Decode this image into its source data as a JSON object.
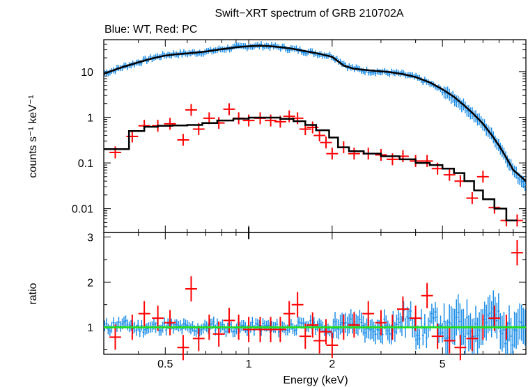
{
  "chart_data": {
    "type": "scatter",
    "title": "Swift−XRT spectrum of GRB 210702A",
    "subtitle": "Blue: WT, Red: PC",
    "xlabel": "Energy (keV)",
    "x_scale": "log",
    "xlim": [
      0.3,
      10
    ],
    "x_ticks": [
      "0.5",
      "1",
      "2",
      "5"
    ],
    "panels": [
      {
        "id": "spectrum",
        "ylabel": "counts s⁻¹ keV⁻¹",
        "y_scale": "log",
        "ylim": [
          0.003,
          50
        ],
        "y_ticks": [
          "10",
          "1",
          "0.1",
          "0.01"
        ],
        "series": [
          {
            "label": "WT",
            "color": "#1e8fe8",
            "x": [
              0.3,
              0.35,
              0.4,
              0.45,
              0.5,
              0.55,
              0.6,
              0.7,
              0.8,
              0.9,
              1.0,
              1.1,
              1.2,
              1.3,
              1.5,
              1.7,
              2.0,
              2.3,
              2.6,
              3.0,
              3.5,
              4.0,
              4.5,
              5.0,
              5.5,
              6.0,
              6.5,
              7.0,
              7.5,
              8.0,
              8.5,
              9.0,
              9.5,
              10.0
            ],
            "y": [
              9,
              12.5,
              16,
              20,
              23,
              24.5,
              25,
              27,
              31,
              34,
              36,
              37,
              36,
              34,
              30,
              26,
              22,
              12.5,
              10.5,
              9.8,
              9,
              7.5,
              5.5,
              3.8,
              2.6,
              1.7,
              1.1,
              0.7,
              0.42,
              0.24,
              0.13,
              0.07,
              0.045,
              0.035
            ]
          },
          {
            "label": "PC",
            "color": "#ff0000",
            "x": [
              0.33,
              0.38,
              0.42,
              0.47,
              0.52,
              0.58,
              0.62,
              0.66,
              0.72,
              0.78,
              0.85,
              0.92,
              1.0,
              1.1,
              1.2,
              1.3,
              1.4,
              1.5,
              1.6,
              1.7,
              1.8,
              1.9,
              2.0,
              2.2,
              2.4,
              2.7,
              3.0,
              3.3,
              3.6,
              4.0,
              4.4,
              4.8,
              5.3,
              5.8,
              6.4,
              7.0,
              7.7,
              8.5,
              9.3
            ],
            "y": [
              0.17,
              0.38,
              0.65,
              0.65,
              0.72,
              0.32,
              1.45,
              0.55,
              0.95,
              0.75,
              1.5,
              0.95,
              0.85,
              0.95,
              0.85,
              0.8,
              1.05,
              0.95,
              0.55,
              0.6,
              0.4,
              0.28,
              0.16,
              0.22,
              0.16,
              0.16,
              0.15,
              0.12,
              0.14,
              0.11,
              0.11,
              0.075,
              0.055,
              0.04,
              0.017,
              0.05,
              0.0105,
              0.0055,
              0.0055
            ]
          }
        ],
        "model": {
          "label": "model",
          "color": "#000000",
          "wt_x": [
            0.3,
            0.35,
            0.4,
            0.45,
            0.5,
            0.55,
            0.6,
            0.7,
            0.8,
            0.9,
            1.0,
            1.1,
            1.2,
            1.4,
            1.6,
            1.8,
            2.0,
            2.2,
            2.4,
            2.8,
            3.2,
            3.6,
            4.0,
            4.5,
            5.0,
            5.5,
            6.0,
            6.5,
            7.0,
            7.5,
            8.0,
            8.5,
            9.0,
            10.0
          ],
          "wt_y": [
            9,
            12.5,
            16,
            19.5,
            22.5,
            24,
            25,
            27.5,
            31,
            34,
            36,
            37,
            36,
            32.5,
            28,
            24.5,
            21,
            13.5,
            11.5,
            10.5,
            9.8,
            8.8,
            7.6,
            5.8,
            4.1,
            2.8,
            1.8,
            1.15,
            0.72,
            0.42,
            0.24,
            0.13,
            0.07,
            0.04
          ],
          "pc_steps_x": [
            0.3,
            0.37,
            0.42,
            0.47,
            0.53,
            0.6,
            0.68,
            0.77,
            0.88,
            1.0,
            1.15,
            1.3,
            1.45,
            1.6,
            1.75,
            1.95,
            2.1,
            2.3,
            2.6,
            3.0,
            3.5,
            4.0,
            4.5,
            5.0,
            5.5,
            6.0,
            6.5,
            7.0,
            7.7,
            8.5,
            9.3
          ],
          "pc_steps_y": [
            0.2,
            0.5,
            0.62,
            0.65,
            0.66,
            0.68,
            0.75,
            0.85,
            0.93,
            0.98,
            0.98,
            0.92,
            0.82,
            0.68,
            0.52,
            0.36,
            0.22,
            0.18,
            0.16,
            0.14,
            0.12,
            0.1,
            0.09,
            0.075,
            0.06,
            0.04,
            0.025,
            0.016,
            0.01,
            0.0055,
            0.0055
          ]
        }
      },
      {
        "id": "ratio",
        "ylabel": "ratio",
        "y_scale": "linear",
        "ylim": [
          0.4,
          3.1
        ],
        "y_ticks": [
          "1",
          "2",
          "3"
        ],
        "reference_line": {
          "y": 1,
          "color": "#22dd22"
        },
        "series": [
          {
            "label": "WT",
            "color": "#1e8fe8",
            "x": [
              0.32,
              0.38,
              0.45,
              0.52,
              0.6,
              0.7,
              0.8,
              0.9,
              1.0,
              1.2,
              1.4,
              1.6,
              1.8,
              2.0,
              2.3,
              2.6,
              3.0,
              3.5,
              4.0,
              4.5,
              5.0,
              5.5,
              6.0,
              7.0,
              8.0,
              9.0,
              9.8
            ],
            "y": [
              1.05,
              0.98,
              1.02,
              1.0,
              0.97,
              1.03,
              0.99,
              1.0,
              1.01,
              0.98,
              1.02,
              1.05,
              0.96,
              1.04,
              1.1,
              0.9,
              1.05,
              1.15,
              0.95,
              1.1,
              0.9,
              1.1,
              1.0,
              1.2,
              0.85,
              1.15,
              1.4
            ]
          },
          {
            "label": "PC",
            "color": "#ff0000",
            "x": [
              0.33,
              0.38,
              0.42,
              0.47,
              0.52,
              0.58,
              0.62,
              0.66,
              0.72,
              0.78,
              0.85,
              0.92,
              1.0,
              1.1,
              1.2,
              1.3,
              1.4,
              1.5,
              1.6,
              1.7,
              1.8,
              1.9,
              2.0,
              2.2,
              2.4,
              2.7,
              3.0,
              3.3,
              3.6,
              4.0,
              4.4,
              4.8,
              5.3,
              5.8,
              6.4,
              7.0,
              7.7,
              8.5,
              9.3
            ],
            "y": [
              0.78,
              1.0,
              1.3,
              1.2,
              1.1,
              0.55,
              1.85,
              0.75,
              1.0,
              0.85,
              1.15,
              1.0,
              0.95,
              0.95,
              0.95,
              0.95,
              1.3,
              1.5,
              0.8,
              1.05,
              0.7,
              0.9,
              0.6,
              1.0,
              1.05,
              1.3,
              1.1,
              1.0,
              1.4,
              1.2,
              1.7,
              0.8,
              0.7,
              0.55,
              0.75,
              1.0,
              1.2,
              1.0,
              2.65
            ]
          }
        ]
      }
    ]
  }
}
